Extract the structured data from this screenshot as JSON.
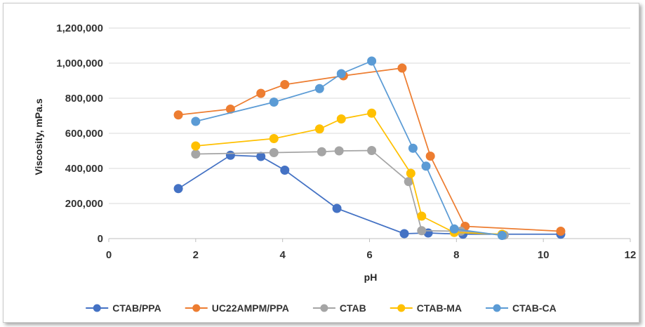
{
  "chart_data": {
    "type": "line",
    "title": "",
    "xlabel": "pH",
    "ylabel": "Viscosity, mPa.s",
    "xlim": [
      0,
      12
    ],
    "ylim": [
      0,
      1200000
    ],
    "xticks": [
      0,
      2,
      4,
      6,
      8,
      10,
      12
    ],
    "yticks": [
      0,
      200000,
      400000,
      600000,
      800000,
      1000000,
      1200000
    ],
    "xtick_labels": [
      "0",
      "2",
      "4",
      "6",
      "8",
      "10",
      "12"
    ],
    "ytick_labels": [
      "0",
      "200,000",
      "400,000",
      "600,000",
      "800,000",
      "1,000,000",
      "1,200,000"
    ],
    "grid": "horizontal",
    "legend_position": "bottom",
    "series": [
      {
        "name": "CTAB/PPA",
        "color": "#4472C4",
        "points": [
          [
            1.6,
            285000
          ],
          [
            2.8,
            475000
          ],
          [
            3.5,
            468000
          ],
          [
            4.05,
            390000
          ],
          [
            5.25,
            172000
          ],
          [
            6.8,
            28000
          ],
          [
            7.35,
            32000
          ],
          [
            8.15,
            25000
          ],
          [
            10.4,
            25000
          ]
        ]
      },
      {
        "name": "UC22AMPM/PPA",
        "color": "#ED7D31",
        "points": [
          [
            1.6,
            705000
          ],
          [
            2.8,
            738000
          ],
          [
            3.5,
            828000
          ],
          [
            4.05,
            878000
          ],
          [
            5.4,
            928000
          ],
          [
            6.75,
            972000
          ],
          [
            7.4,
            470000
          ],
          [
            8.2,
            70000
          ],
          [
            10.4,
            42000
          ]
        ]
      },
      {
        "name": "CTAB",
        "color": "#A5A5A5",
        "points": [
          [
            2.0,
            482000
          ],
          [
            3.8,
            490000
          ],
          [
            4.9,
            495000
          ],
          [
            5.3,
            500000
          ],
          [
            6.05,
            502000
          ],
          [
            6.9,
            325000
          ],
          [
            7.2,
            45000
          ],
          [
            8.1,
            42000
          ],
          [
            9.1,
            20000
          ]
        ]
      },
      {
        "name": "CTAB-MA",
        "color": "#FFC000",
        "points": [
          [
            2.0,
            528000
          ],
          [
            3.8,
            570000
          ],
          [
            4.85,
            625000
          ],
          [
            5.35,
            682000
          ],
          [
            6.05,
            715000
          ],
          [
            6.95,
            372000
          ],
          [
            7.2,
            128000
          ],
          [
            7.95,
            35000
          ],
          [
            9.05,
            25000
          ]
        ]
      },
      {
        "name": "CTAB-CA",
        "color": "#5B9BD5",
        "points": [
          [
            2.0,
            668000
          ],
          [
            3.8,
            778000
          ],
          [
            4.85,
            855000
          ],
          [
            5.35,
            940000
          ],
          [
            6.05,
            1012000
          ],
          [
            7.0,
            515000
          ],
          [
            7.3,
            413000
          ],
          [
            7.95,
            55000
          ],
          [
            9.05,
            18000
          ]
        ]
      }
    ]
  }
}
